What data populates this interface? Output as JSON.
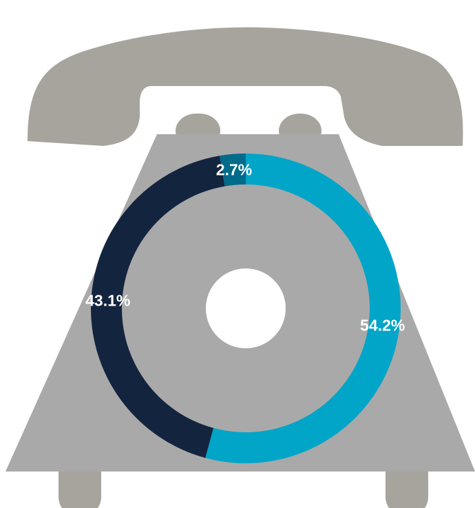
{
  "chart_data": {
    "type": "donut",
    "values": [
      54.2,
      43.1,
      2.7
    ],
    "value_labels": [
      "54.2%",
      "43.1%",
      "2.7%"
    ],
    "colors": [
      "#00a5c8",
      "#13243f",
      "#006b8a"
    ]
  }
}
